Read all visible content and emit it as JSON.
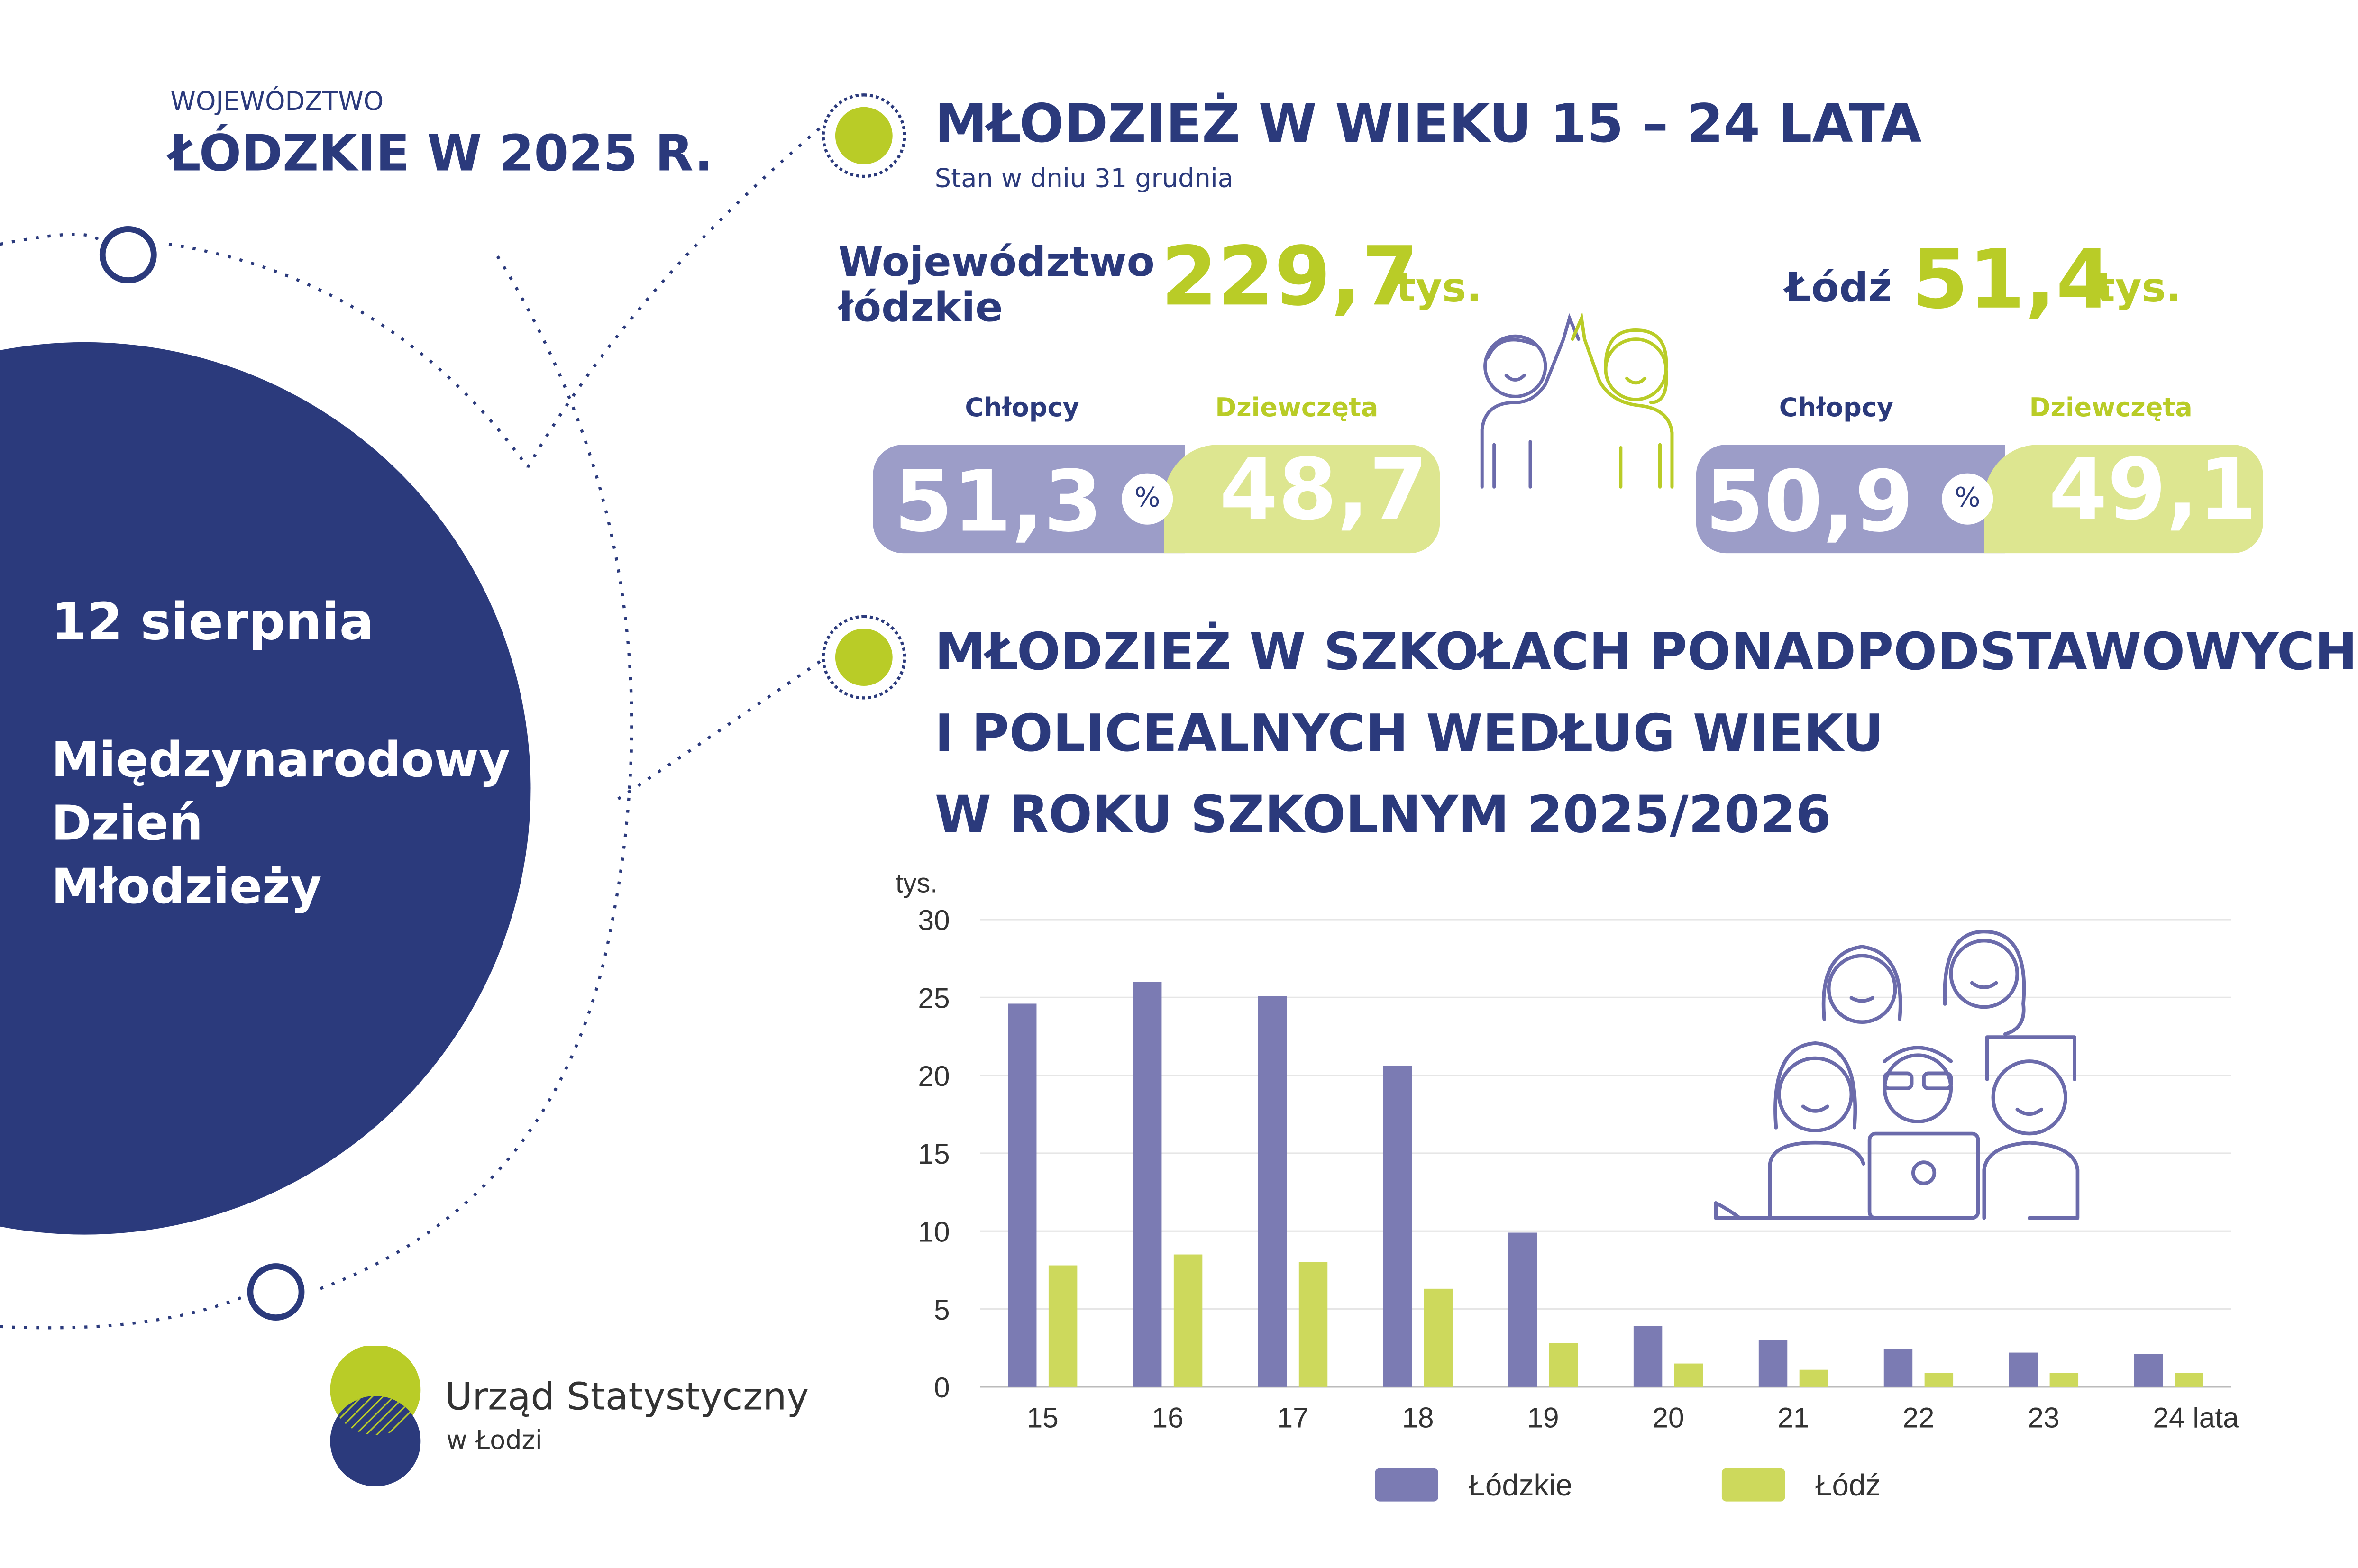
{
  "region": {
    "prefix": "WOJEWÓDZTWO",
    "name": "ŁÓDZKIE W 2025 R."
  },
  "event": {
    "date": "12 sierpnia",
    "line1": "Międzynarodowy",
    "line2": "Dzień",
    "line3": "Młodzieży"
  },
  "logo": {
    "line1": "Urząd Statystyczny",
    "line2": "w Łodzi"
  },
  "section1": {
    "title": "MŁODZIEŻ W WIEKU 15 – 24 LATA",
    "subtitle": "Stan w dniu 31 grudnia",
    "voivodeship": {
      "label_line1": "Województwo",
      "label_line2": "łódzkie",
      "value": "229,7",
      "unit": "tys.",
      "boys_label": "Chłopcy",
      "girls_label": "Dziewczęta",
      "boys_pct": 51.3,
      "girls_pct": 48.7,
      "boys_text": "51,3",
      "girls_text": "48,7",
      "pct_sign": "%"
    },
    "city": {
      "label": "Łódź",
      "value": "51,4",
      "unit": "tys.",
      "boys_label": "Chłopcy",
      "girls_label": "Dziewczęta",
      "boys_pct": 50.9,
      "girls_pct": 49.1,
      "boys_text": "50,9",
      "girls_text": "49,1",
      "pct_sign": "%"
    }
  },
  "section2": {
    "title_line1": "MŁODZIEŻ W SZKOŁACH PONADPODSTAWOWYCH",
    "title_line2": "I POLICEALNYCH WEDŁUG WIEKU",
    "title_line3": "W ROKU SZKOLNYM 2025/2026"
  },
  "colors": {
    "navy": "#2b3a7c",
    "lime": "#b9cc27",
    "series_lodzkie": "#7b7bb3",
    "series_lodz": "#cdd95c"
  },
  "chart_data": {
    "type": "bar",
    "ylabel": "tys.",
    "ylim": [
      0,
      30
    ],
    "yticks": [
      "0",
      "5",
      "10",
      "15",
      "20",
      "25",
      "30"
    ],
    "categories": [
      "15",
      "16",
      "17",
      "18",
      "19",
      "20",
      "21",
      "22",
      "23",
      "24 lata"
    ],
    "series": [
      {
        "name": "Łódzkie",
        "values": [
          24.6,
          26.0,
          25.1,
          20.6,
          9.9,
          3.9,
          3.0,
          2.4,
          2.2,
          2.1
        ]
      },
      {
        "name": "Łódź",
        "values": [
          7.8,
          8.5,
          8.0,
          6.3,
          2.8,
          1.5,
          1.1,
          0.9,
          0.9,
          0.9
        ]
      }
    ],
    "grid": true,
    "legend": "bottom"
  }
}
